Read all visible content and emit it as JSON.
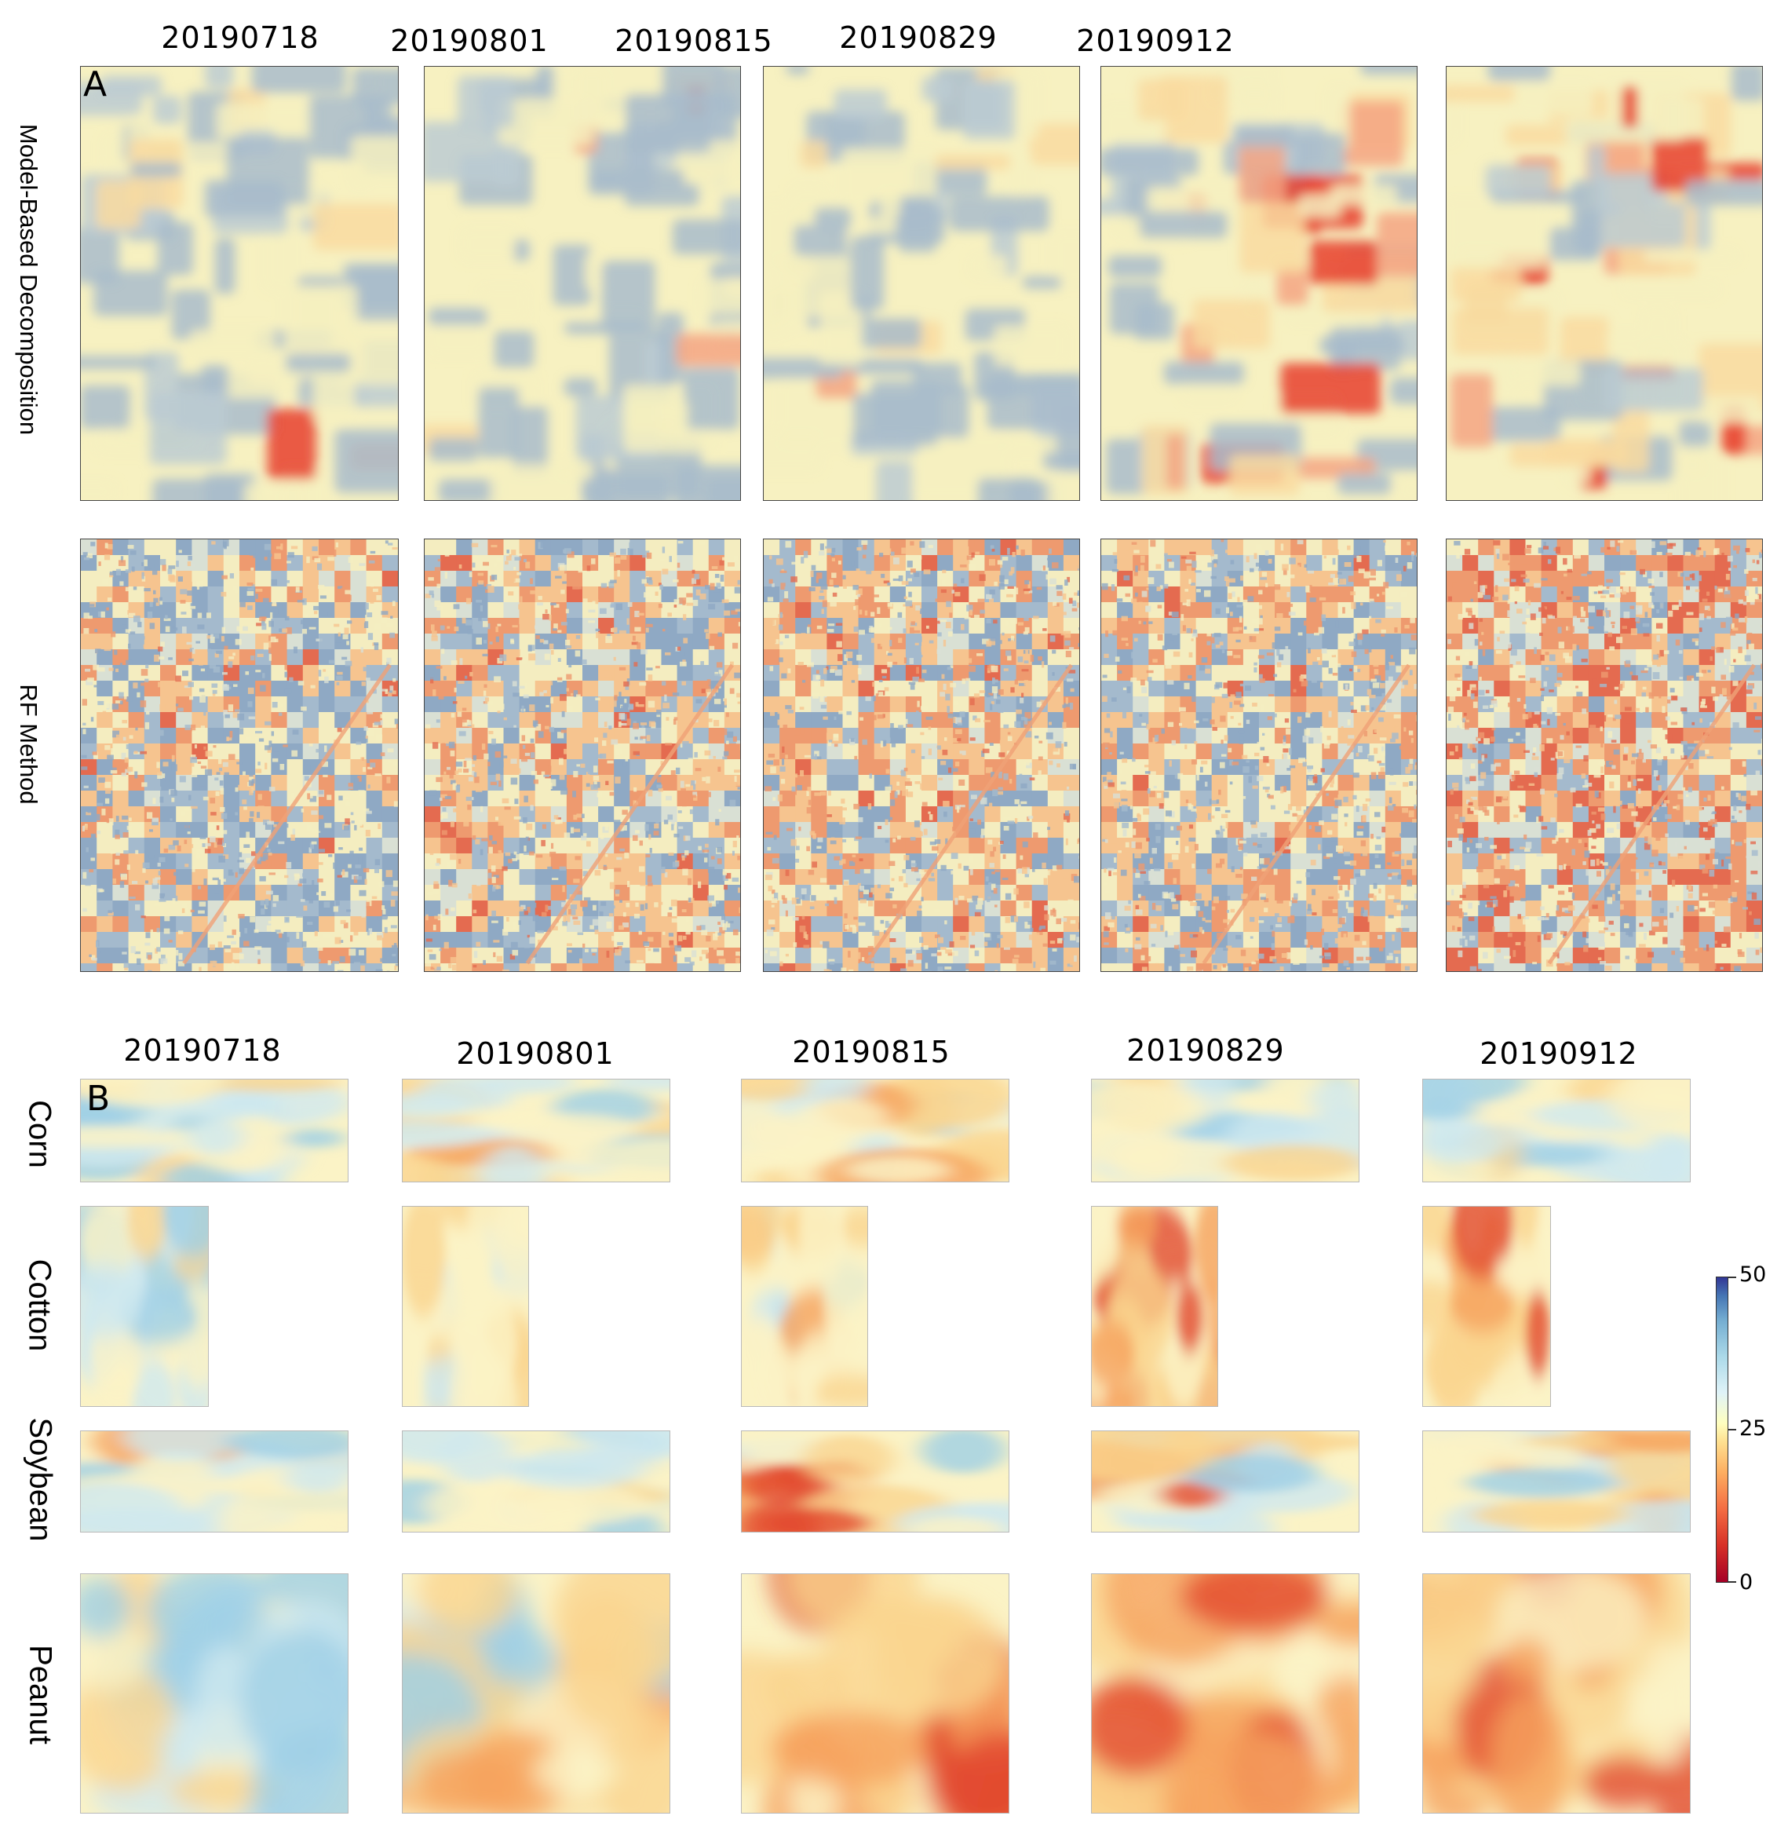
{
  "panel_a": {
    "label": "A",
    "row_labels": [
      "Model-Based Decomposition",
      "RF Method"
    ],
    "dates": [
      "20190718",
      "20190801",
      "20190815",
      "20190829",
      "20190912"
    ]
  },
  "panel_b": {
    "label": "B",
    "dates": [
      "20190718",
      "20190801",
      "20190815",
      "20190829",
      "20190912"
    ],
    "crops": [
      "Corn",
      "Cotton",
      "Soybean",
      "Peanut"
    ]
  },
  "colorbar": {
    "ticks": [
      "50",
      "25",
      "0"
    ],
    "colors": [
      "#a50026",
      "#d73027",
      "#f46d43",
      "#fdae61",
      "#fee090",
      "#ffffbf",
      "#e0f3f8",
      "#abd9e9",
      "#74add1",
      "#4575b4",
      "#313695"
    ]
  }
}
